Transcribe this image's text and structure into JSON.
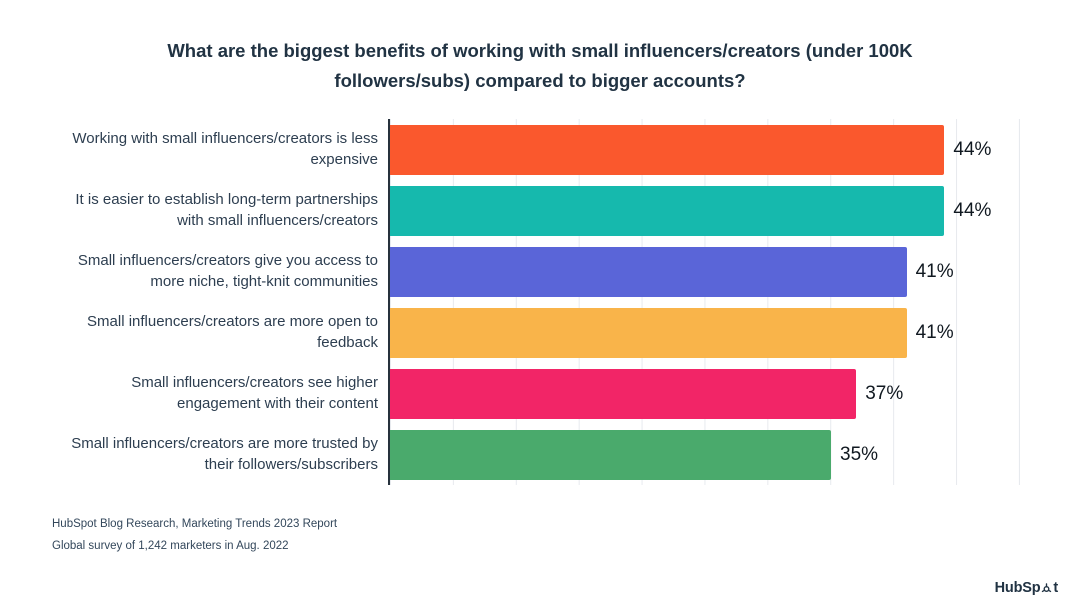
{
  "title": "What are the biggest benefits of working with small influencers/creators (under 100K followers/subs) compared to bigger accounts?",
  "chart_data": {
    "type": "bar",
    "orientation": "horizontal",
    "title": "What are the biggest benefits of working with small influencers/creators (under 100K followers/subs) compared to bigger accounts?",
    "categories": [
      "Working with small influencers/creators is less expensive",
      "It is easier to establish long-term partnerships with small influencers/creators",
      "Small influencers/creators give you access to more niche, tight-knit communities",
      "Small influencers/creators are more open to feedback",
      "Small influencers/creators see higher engagement with their content",
      "Small influencers/creators are more trusted by their followers/subscribers"
    ],
    "values": [
      44,
      44,
      41,
      41,
      37,
      35
    ],
    "value_labels": [
      "44%",
      "44%",
      "41%",
      "41%",
      "37%",
      "35%"
    ],
    "colors": [
      "#FA582D",
      "#16B9AD",
      "#5A65D8",
      "#F9B44A",
      "#F22567",
      "#4AAA6C"
    ],
    "xlim": [
      0,
      50
    ],
    "gridline_step": 5,
    "grid": "vertical",
    "legend": "none",
    "xlabel": "",
    "ylabel": ""
  },
  "source": {
    "line1": "HubSpot Blog Research, Marketing Trends 2023 Report",
    "line2": "Global survey of 1,242 marketers in Aug. 2022"
  },
  "logo": {
    "text_before": "HubSp",
    "text_after": "t"
  }
}
